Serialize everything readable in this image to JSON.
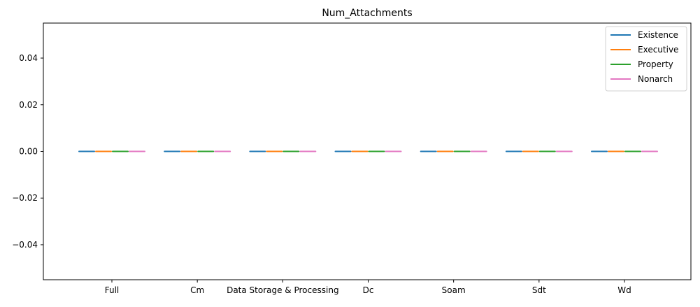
{
  "chart_data": {
    "type": "bar",
    "title": "Num_Attachments",
    "xlabel": "",
    "ylabel": "",
    "categories": [
      "Full",
      "Cm",
      "Data Storage & Processing",
      "Dc",
      "Soam",
      "Sdt",
      "Wd"
    ],
    "series": [
      {
        "name": "Existence",
        "color": "#1f77b4",
        "values": [
          0,
          0,
          0,
          0,
          0,
          0,
          0
        ]
      },
      {
        "name": "Executive",
        "color": "#ff7f0e",
        "values": [
          0,
          0,
          0,
          0,
          0,
          0,
          0
        ]
      },
      {
        "name": "Property",
        "color": "#2ca02c",
        "values": [
          0,
          0,
          0,
          0,
          0,
          0,
          0
        ]
      },
      {
        "name": "Nonarch",
        "color": "#e377c2",
        "values": [
          0,
          0,
          0,
          0,
          0,
          0,
          0
        ]
      }
    ],
    "ylim": [
      -0.055,
      0.055
    ],
    "yticks": [
      -0.04,
      -0.02,
      0.0,
      0.02,
      0.04
    ],
    "ytick_labels": [
      "−0.04",
      "−0.02",
      "0.00",
      "0.02",
      "0.04"
    ],
    "grid": false,
    "legend_position": "top-right"
  }
}
